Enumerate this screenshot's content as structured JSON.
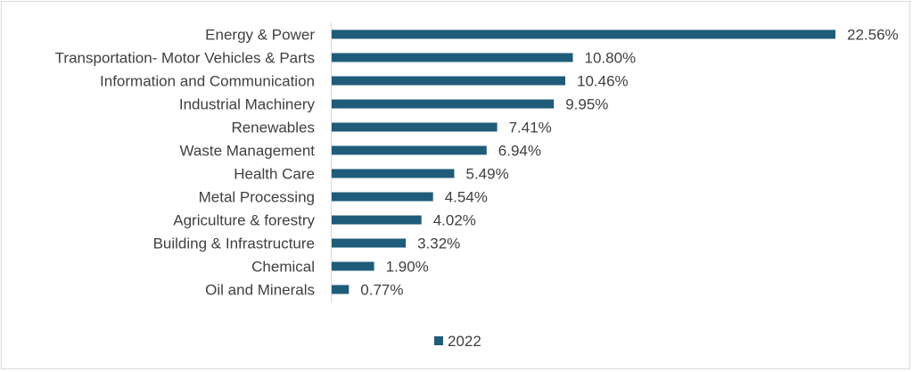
{
  "chart_data": {
    "type": "bar",
    "orientation": "horizontal",
    "title": "",
    "xlabel": "",
    "ylabel": "",
    "xlim": [
      0,
      25
    ],
    "grid": false,
    "legend_position": "bottom",
    "series_color": "#1f5c7a",
    "categories": [
      "Energy & Power",
      "Transportation- Motor Vehicles & Parts",
      "Information and Communication",
      "Industrial Machinery",
      "Renewables",
      "Waste Management",
      "Health Care",
      "Metal Processing",
      "Agriculture & forestry",
      "Building & Infrastructure",
      "Chemical",
      "Oil and Minerals"
    ],
    "series": [
      {
        "name": "2022",
        "values": [
          22.56,
          10.8,
          10.46,
          9.95,
          7.41,
          6.94,
          5.49,
          4.54,
          4.02,
          3.32,
          1.9,
          0.77
        ],
        "labels": [
          "22.56%",
          "10.80%",
          "10.46%",
          "9.95%",
          "7.41%",
          "6.94%",
          "5.49%",
          "4.54%",
          "4.02%",
          "3.32%",
          "1.90%",
          "0.77%"
        ]
      }
    ]
  }
}
